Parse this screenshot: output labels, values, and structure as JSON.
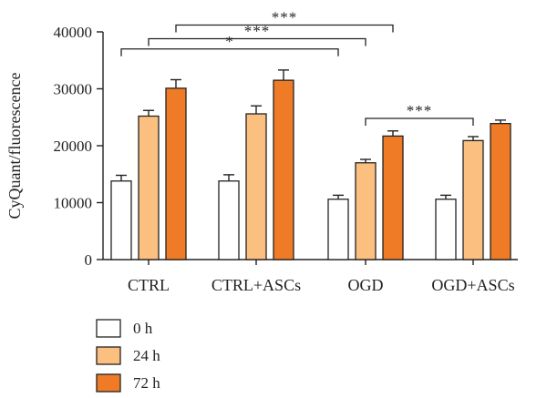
{
  "chart_data": {
    "type": "bar",
    "title": "",
    "xlabel": "",
    "ylabel": "CyQuant/fluorescence",
    "ylim": [
      0,
      40000
    ],
    "yticks": [
      0,
      10000,
      20000,
      30000,
      40000
    ],
    "categories": [
      "CTRL",
      "CTRL+ASCs",
      "OGD",
      "OGD+ASCs"
    ],
    "series": [
      {
        "name": "0 h",
        "color": "#ffffff",
        "values": [
          13800,
          13800,
          10600,
          10600
        ],
        "errors": [
          1000,
          1100,
          700,
          700
        ]
      },
      {
        "name": "24 h",
        "color": "#fbbf7f",
        "values": [
          25200,
          25600,
          17000,
          20900
        ],
        "errors": [
          1000,
          1400,
          600,
          700
        ]
      },
      {
        "name": "72 h",
        "color": "#ef7b26",
        "values": [
          30100,
          31500,
          21700,
          23900
        ],
        "errors": [
          1500,
          1800,
          900,
          600
        ]
      }
    ],
    "grid": false,
    "legend_position": "bottom-left",
    "significance": [
      {
        "from": {
          "category": 0,
          "series": 0
        },
        "to": {
          "category": 2,
          "series": 0
        },
        "level": 37000,
        "label": "*"
      },
      {
        "from": {
          "category": 0,
          "series": 1
        },
        "to": {
          "category": 2,
          "series": 1
        },
        "level": 38800,
        "label": "***"
      },
      {
        "from": {
          "category": 0,
          "series": 2
        },
        "to": {
          "category": 2,
          "series": 2
        },
        "level": 41200,
        "label": "***"
      },
      {
        "from": {
          "category": 2,
          "series": 1
        },
        "to": {
          "category": 3,
          "series": 1
        },
        "level": 24800,
        "label": "***"
      }
    ]
  }
}
